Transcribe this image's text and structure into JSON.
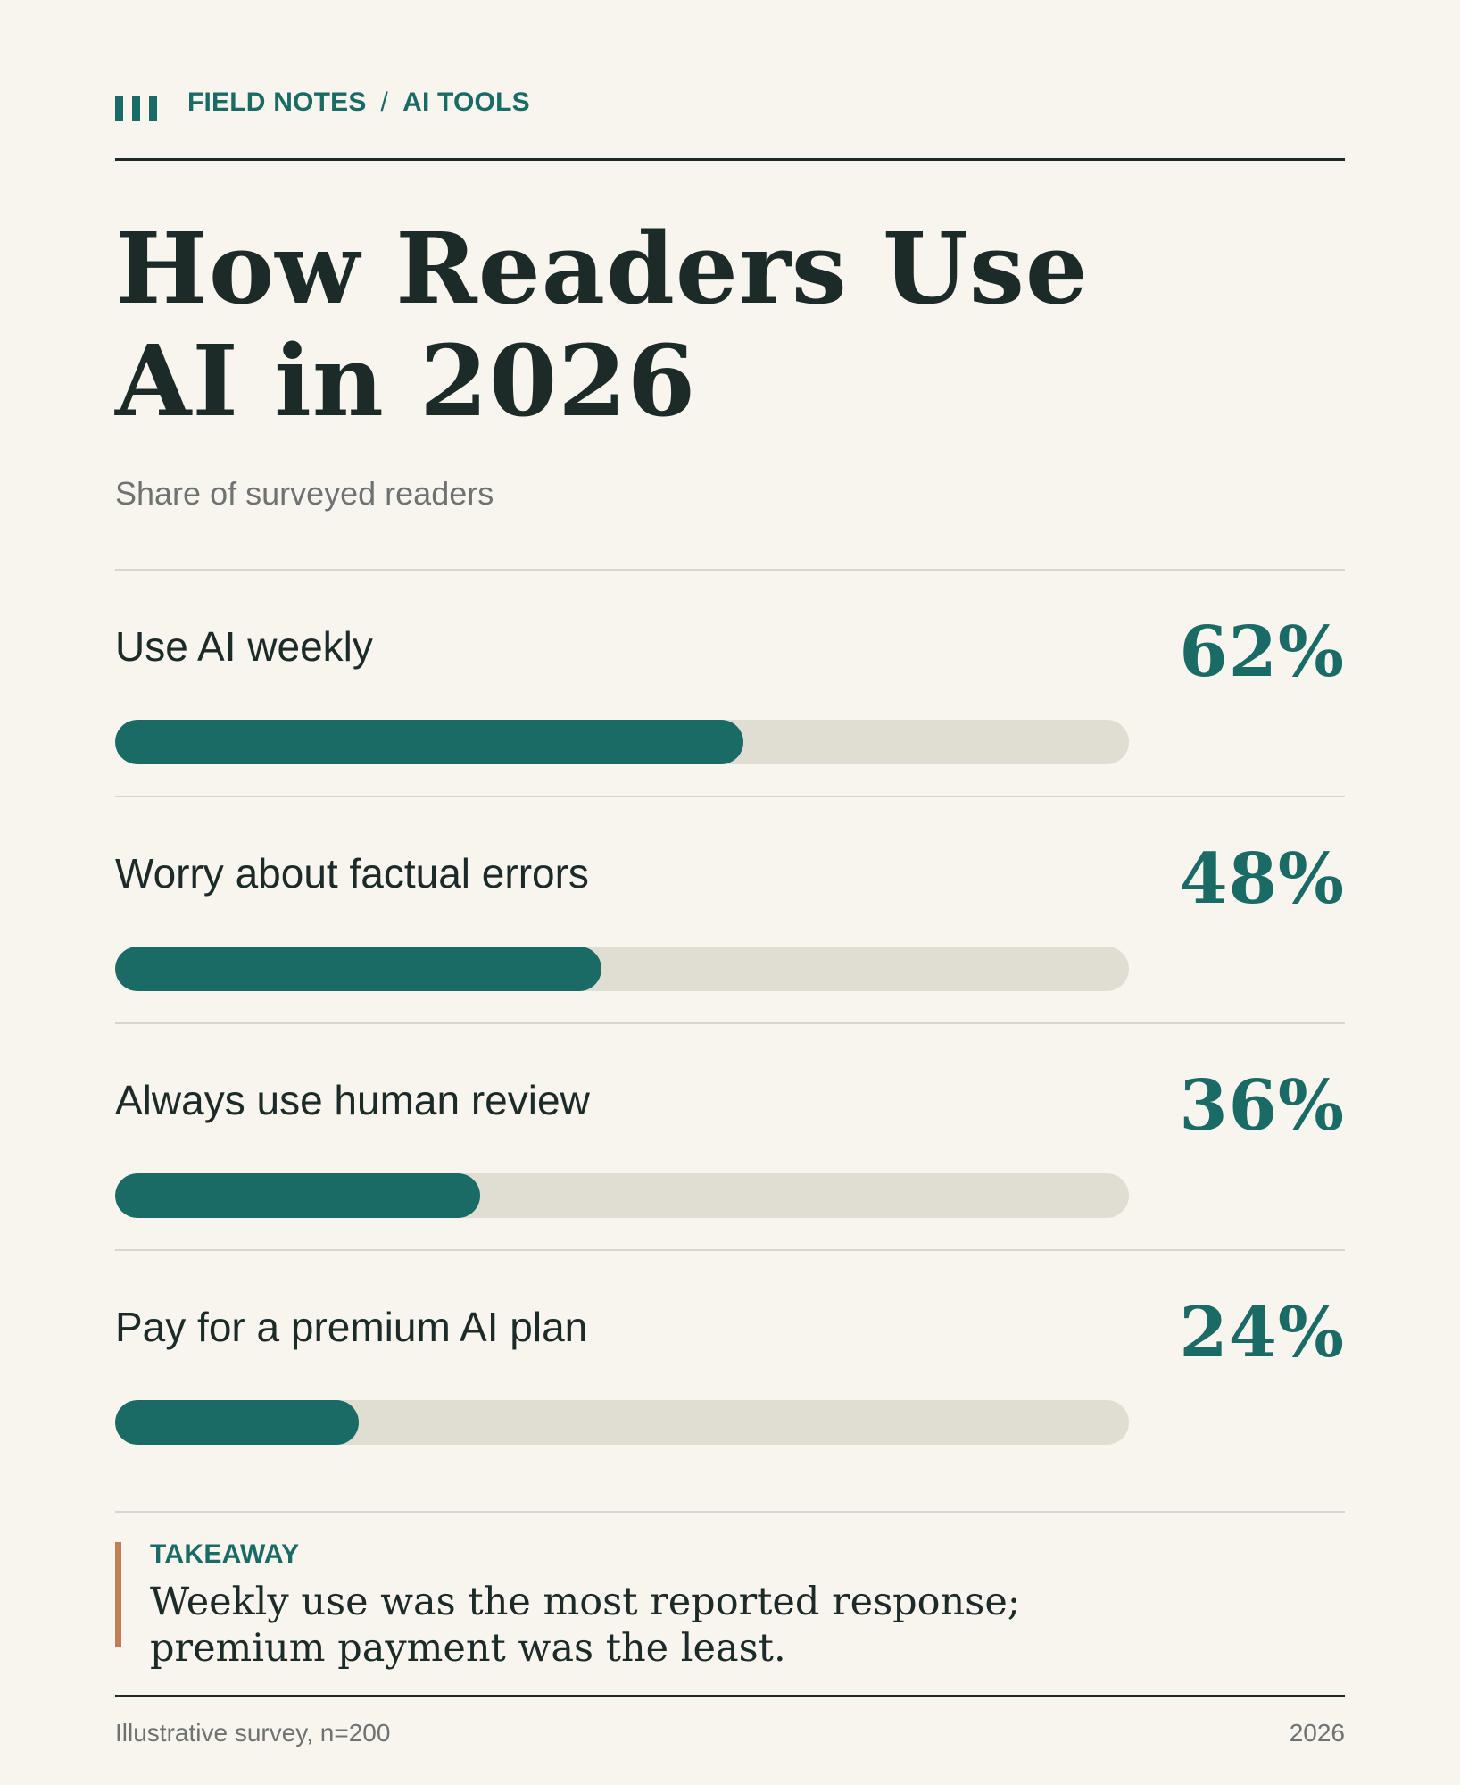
{
  "header": {
    "section": "FIELD NOTES",
    "separator": "/",
    "topic": "AI TOOLS",
    "logo_icon": "three-bars-icon"
  },
  "title_lines": [
    "How Readers Use",
    "AI in 2026"
  ],
  "colors": {
    "background": "#f8f5ee",
    "accent": "#1a6a65",
    "track": "#e0ded3",
    "takeaway_rule": "#c17d57",
    "text": "#1c2a28",
    "muted": "#6e7270"
  },
  "chart_data": {
    "type": "bar",
    "orientation": "horizontal",
    "title": "How Readers Use AI in 2026",
    "subtitle": "Share of surveyed readers",
    "xlim": [
      0,
      100
    ],
    "unit": "%",
    "grid": false,
    "categories": [
      "Use AI weekly",
      "Worry about factual errors",
      "Always use human review",
      "Pay for a premium AI plan"
    ],
    "values": [
      62,
      48,
      36,
      24
    ],
    "value_labels": [
      "62%",
      "48%",
      "36%",
      "24%"
    ]
  },
  "takeaway": {
    "label": "TAKEAWAY",
    "text_lines": [
      "Weekly use was the most reported response;",
      "premium payment was the least."
    ]
  },
  "footer": {
    "source": "Illustrative survey, n=200",
    "year": "2026"
  }
}
